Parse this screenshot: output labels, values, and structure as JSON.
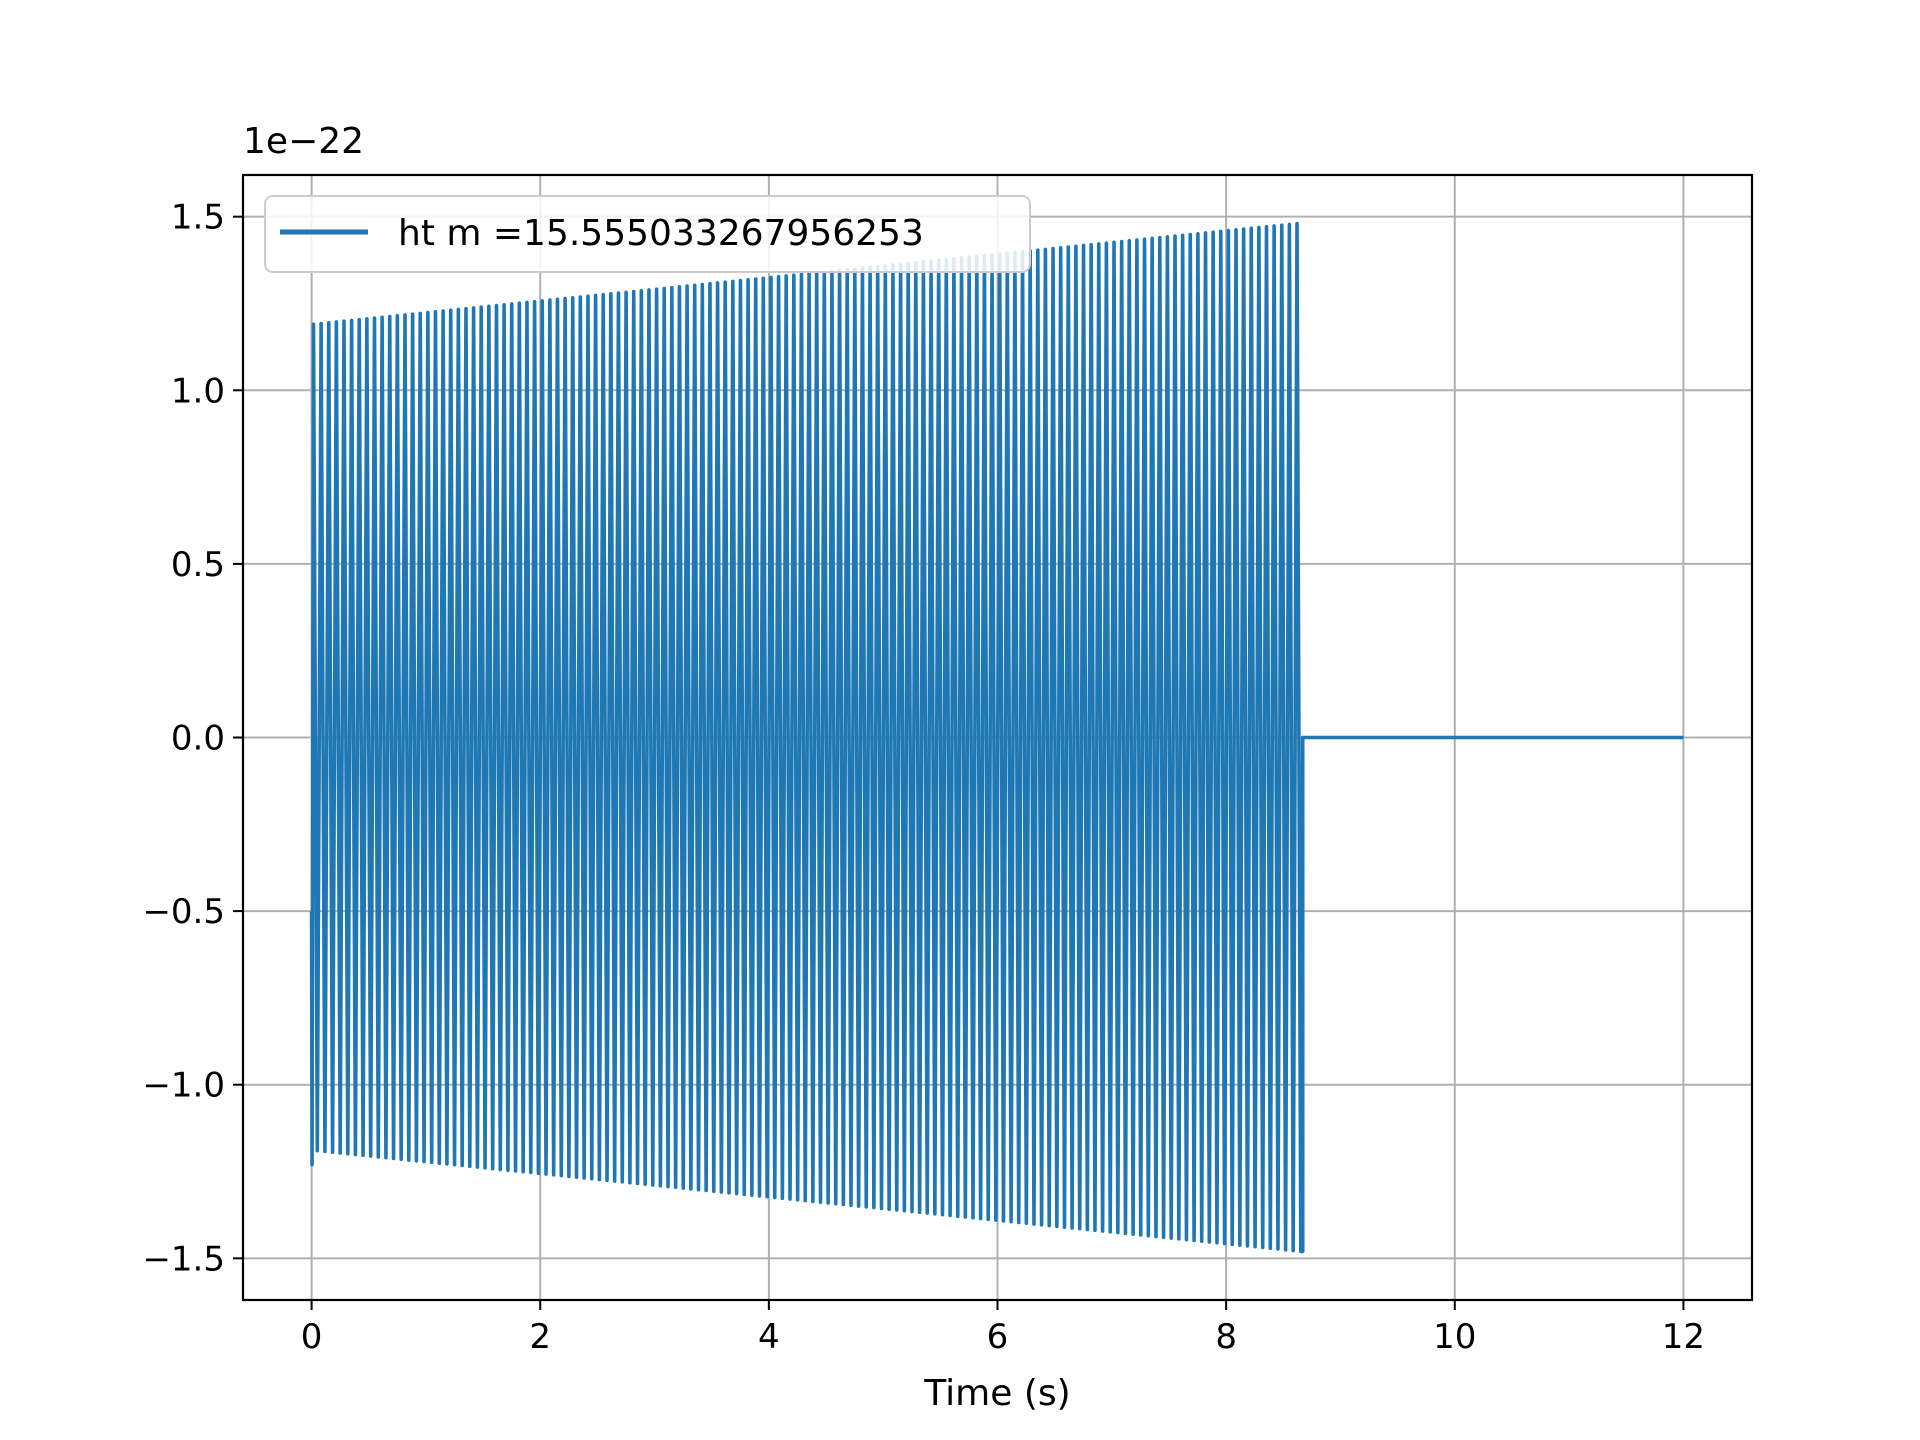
{
  "chart_data": {
    "type": "line",
    "title": "",
    "xlabel": "Time (s)",
    "ylabel": "",
    "y_offset_text": "1e−22",
    "xlim": [
      -0.6,
      12.6
    ],
    "ylim": [
      -1.62,
      1.62
    ],
    "xticks": [
      0,
      2,
      4,
      6,
      8,
      10,
      12
    ],
    "xtick_labels": [
      "0",
      "2",
      "4",
      "6",
      "8",
      "10",
      "12"
    ],
    "yticks": [
      -1.5,
      -1.0,
      -0.5,
      0.0,
      0.5,
      1.0,
      1.5
    ],
    "ytick_labels": [
      "−1.5",
      "−1.0",
      "−0.5",
      "0.0",
      "0.5",
      "1.0",
      "1.5"
    ],
    "grid": true,
    "legend_position": "upper-left",
    "colors": {
      "series": "#1f77b4",
      "grid": "#b0b0b0",
      "axes": "#000000"
    },
    "series": [
      {
        "name": "ht m =15.555033267956253",
        "signal": {
          "kind": "oscillation",
          "t_start": 0.0,
          "t_stop": 8.67,
          "t_end": 12.0,
          "cycles": 130,
          "amplitude_start": 1.19,
          "amplitude_stop": 1.48,
          "start_value": -0.5,
          "min_start_value": -1.23,
          "after_stop_value": 0.0
        }
      }
    ]
  }
}
